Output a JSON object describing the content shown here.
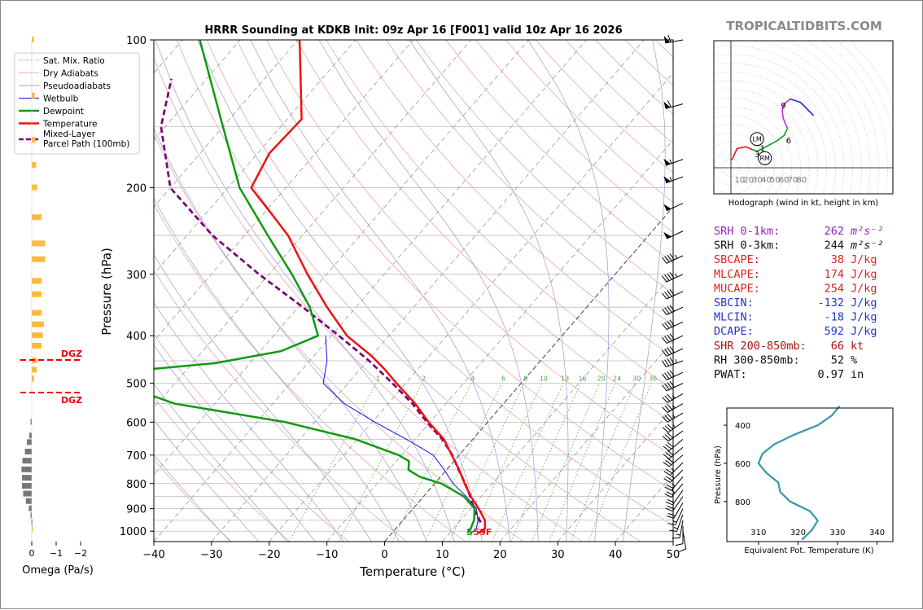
{
  "title": "HRRR Sounding at KDKB Init: 09z Apr 16 [F001] valid 10z Apr 16 2026",
  "brand": "TROPICALTIDBITS.COM",
  "colors": {
    "temperature": "#ee1111",
    "dewpoint": "#119911",
    "wetbulb": "#1111ee",
    "parcel": "#770077",
    "dry": "#e79b9b",
    "moist": "#9a9ad8",
    "mix": "#44aa44",
    "grid": "#bbbbbb",
    "omega_pos": "#ffbb33",
    "omega_neg": "#777777",
    "dgz": "#ee0000"
  },
  "chart_data": [
    {
      "type": "line",
      "name": "skewt",
      "title": "HRRR Sounding at KDKB Init: 09z Apr 16 [F001] valid 10z Apr 16 2026",
      "xlabel": "Temperature (°C)",
      "ylabel": "Pressure (hPa)",
      "xlim": [
        -40,
        50
      ],
      "ylim": [
        1050,
        100
      ],
      "x_ticks": [
        -40,
        -30,
        -20,
        -10,
        0,
        10,
        20,
        30,
        40,
        50
      ],
      "y_ticks": [
        100,
        200,
        300,
        400,
        500,
        600,
        700,
        800,
        900,
        1000
      ],
      "skew_note": "isotherms skewed; temperature axis at 1050 hPa",
      "legend": [
        "Sat. Mix. Ratio",
        "Dry Adiabats",
        "Pseudoadiabats",
        "Wetbulb",
        "Dewpoint",
        "Temperature",
        "Mixed-Layer Parcel Path (100mb)"
      ],
      "mix_labels": [
        "1",
        "2",
        "4",
        "6",
        "8",
        "10",
        "13",
        "16",
        "20",
        "24",
        "30",
        "36"
      ],
      "surface_dewpoint_label": "5",
      "surface_temp_label": "59F",
      "series": [
        {
          "name": "Temperature",
          "p": [
            1008,
            990,
            950,
            900,
            850,
            800,
            750,
            700,
            650,
            600,
            550,
            500,
            470,
            440,
            400,
            350,
            300,
            250,
            230,
            200,
            170,
            145,
            100
          ],
          "t": [
            15.0,
            15.5,
            14.2,
            11.4,
            8.2,
            5.2,
            2.2,
            -1.3,
            -5.0,
            -10.2,
            -15.3,
            -21.6,
            -25.5,
            -30.0,
            -37.3,
            -45.0,
            -53.3,
            -62.5,
            -67.5,
            -76.0,
            -78.0,
            -77.5,
            -89.7
          ]
        },
        {
          "name": "Dewpoint",
          "p": [
            1008,
            990,
            950,
            900,
            850,
            800,
            775,
            750,
            720,
            700,
            650,
            600,
            550,
            500,
            470,
            455,
            430,
            400,
            350,
            300,
            250,
            200,
            145,
            100
          ],
          "t": [
            13.1,
            13.0,
            12.3,
            10.7,
            7.0,
            1.2,
            -3.6,
            -6.6,
            -7.8,
            -10.5,
            -20.3,
            -35.0,
            -57.0,
            -70.0,
            -68.0,
            -56.0,
            -46.4,
            -42.3,
            -48.0,
            -56.0,
            -66.0,
            -78.0,
            -91.5,
            -107.0
          ]
        },
        {
          "name": "Wetbulb",
          "p": [
            1008,
            990,
            950,
            900,
            850,
            800,
            750,
            700,
            650,
            600,
            550,
            500,
            450,
            400
          ],
          "t": [
            13.7,
            14.0,
            13.0,
            11.0,
            7.4,
            3.2,
            -0.4,
            -4.5,
            -11.5,
            -19.5,
            -27.6,
            -34.3,
            -37.0,
            -41.0
          ]
        },
        {
          "name": "Mixed-Layer Parcel Path (100mb)",
          "p": [
            960,
            900,
            850,
            800,
            750,
            700,
            650,
            600,
            550,
            500,
            450,
            400,
            350,
            300,
            250,
            200,
            150,
            120
          ],
          "t": [
            13.8,
            10.5,
            8.1,
            5.3,
            2.1,
            -1.2,
            -5.3,
            -10.5,
            -15.8,
            -22.3,
            -29.7,
            -38.7,
            -49.2,
            -61.7,
            -75.6,
            -90.0,
            -100.8,
            -106.1
          ]
        }
      ]
    },
    {
      "type": "bar",
      "name": "omega",
      "xlabel": "Omega (Pa/s)",
      "x_ticks": [
        "0",
        "−1",
        "−2"
      ],
      "dgz_label": "DGZ",
      "dgz_top_hPa": 440,
      "dgz_bottom_hPa": 530,
      "p": [
        100,
        130,
        160,
        180,
        200,
        230,
        260,
        280,
        310,
        330,
        360,
        380,
        400,
        420,
        450,
        470,
        490,
        600,
        640,
        660,
        690,
        720,
        750,
        780,
        810,
        840,
        870,
        900,
        930,
        960,
        990
      ],
      "values": [
        -0.08,
        -0.12,
        -0.15,
        -0.18,
        -0.22,
        -0.4,
        -0.55,
        -0.55,
        -0.4,
        -0.4,
        -0.4,
        -0.5,
        -0.45,
        -0.4,
        -0.2,
        -0.2,
        -0.1,
        0.05,
        0.1,
        0.2,
        0.28,
        0.38,
        0.42,
        0.4,
        0.4,
        0.35,
        0.24,
        0.12,
        0.05,
        0.02,
        -0.02
      ]
    },
    {
      "type": "line",
      "name": "hodograph",
      "xlabel": "Hodograph (wind in kt, height in km)",
      "ring_labels": [
        "10",
        "20",
        "30",
        "40",
        "50",
        "60",
        "70",
        "80"
      ],
      "points_u_v": [
        [
          1,
          9
        ],
        [
          7,
          22
        ],
        [
          17,
          24
        ],
        [
          24,
          21
        ],
        [
          30,
          19
        ],
        [
          40,
          24
        ],
        [
          53,
          31
        ],
        [
          61,
          37
        ],
        [
          65,
          45
        ],
        [
          60,
          57
        ],
        [
          59,
          65
        ],
        [
          60,
          72
        ],
        [
          68,
          79
        ],
        [
          80,
          75
        ],
        [
          95,
          60
        ]
      ],
      "height_labels": [
        {
          "label": "1",
          "u": 37,
          "v": 23
        },
        {
          "label": "2",
          "u": 34,
          "v": 13
        },
        {
          "label": "3",
          "u": 31,
          "v": 16
        },
        {
          "label": "6",
          "u": 67,
          "v": 32
        },
        {
          "label": "9",
          "u": 61,
          "v": 72
        }
      ],
      "markers": [
        {
          "label": "LM",
          "u": 30,
          "v": 33
        },
        {
          "label": "RM",
          "u": 39,
          "v": 11
        }
      ]
    },
    {
      "type": "line",
      "name": "theta_e",
      "xlabel": "Equivalent Pot. Temperature (K)",
      "ylabel": "Pressure (hPa)",
      "x_ticks": [
        "310",
        "320",
        "330",
        "340"
      ],
      "y_ticks": [
        "400",
        "600",
        "800"
      ],
      "xlim": [
        302,
        344
      ],
      "ylim": [
        1010,
        310
      ],
      "p": [
        300,
        350,
        400,
        450,
        500,
        550,
        600,
        650,
        700,
        750,
        800,
        850,
        900,
        950,
        1000
      ],
      "theta_e": [
        330.5,
        328.5,
        325.0,
        319.0,
        314.0,
        311.0,
        310.0,
        312.0,
        315.0,
        315.5,
        318.0,
        323.0,
        325.0,
        323.5,
        321.0
      ]
    }
  ],
  "barbs": {
    "p": [
      100,
      135,
      175,
      190,
      215,
      245,
      275,
      300,
      325,
      350,
      375,
      400,
      425,
      450,
      475,
      500,
      525,
      550,
      575,
      600,
      625,
      650,
      675,
      700,
      725,
      750,
      775,
      800,
      825,
      850,
      875,
      900,
      925,
      950,
      975,
      1000
    ],
    "speed": [
      60,
      60,
      55,
      55,
      50,
      50,
      45,
      45,
      40,
      40,
      40,
      40,
      40,
      45,
      40,
      40,
      35,
      35,
      35,
      35,
      30,
      30,
      30,
      30,
      25,
      25,
      25,
      25,
      20,
      20,
      20,
      15,
      15,
      15,
      10,
      10
    ],
    "dir": [
      260,
      255,
      250,
      250,
      245,
      245,
      245,
      245,
      245,
      245,
      245,
      245,
      245,
      250,
      245,
      245,
      240,
      240,
      240,
      235,
      235,
      230,
      230,
      230,
      225,
      225,
      220,
      220,
      215,
      215,
      210,
      205,
      200,
      190,
      180,
      170
    ]
  },
  "indices": [
    {
      "label": "SRH 0-1km:",
      "value": "262",
      "unit": "m²s⁻²",
      "color": "#9922bb"
    },
    {
      "label": "SRH 0-3km:",
      "value": "244",
      "unit": "m²s⁻²",
      "color": "#111111"
    },
    {
      "label": "SBCAPE:",
      "value": "38",
      "unit": "J/kg",
      "color": "#dd2222"
    },
    {
      "label": "MLCAPE:",
      "value": "174",
      "unit": "J/kg",
      "color": "#dd2222"
    },
    {
      "label": "MUCAPE:",
      "value": "254",
      "unit": "J/kg",
      "color": "#dd2222"
    },
    {
      "label": "SBCIN:",
      "value": "-132",
      "unit": "J/kg",
      "color": "#2233cc"
    },
    {
      "label": "MLCIN:",
      "value": "-18",
      "unit": "J/kg",
      "color": "#2233cc"
    },
    {
      "label": "DCAPE:",
      "value": "592",
      "unit": "J/kg",
      "color": "#2233cc"
    },
    {
      "label": "SHR 200-850mb:",
      "value": "66",
      "unit": "kt",
      "color": "#aa1111"
    },
    {
      "label": "RH 300-850mb:",
      "value": "52",
      "unit": "%",
      "color": "#111111"
    },
    {
      "label": "PWAT:",
      "value": "0.97",
      "unit": "in",
      "color": "#111111"
    }
  ]
}
